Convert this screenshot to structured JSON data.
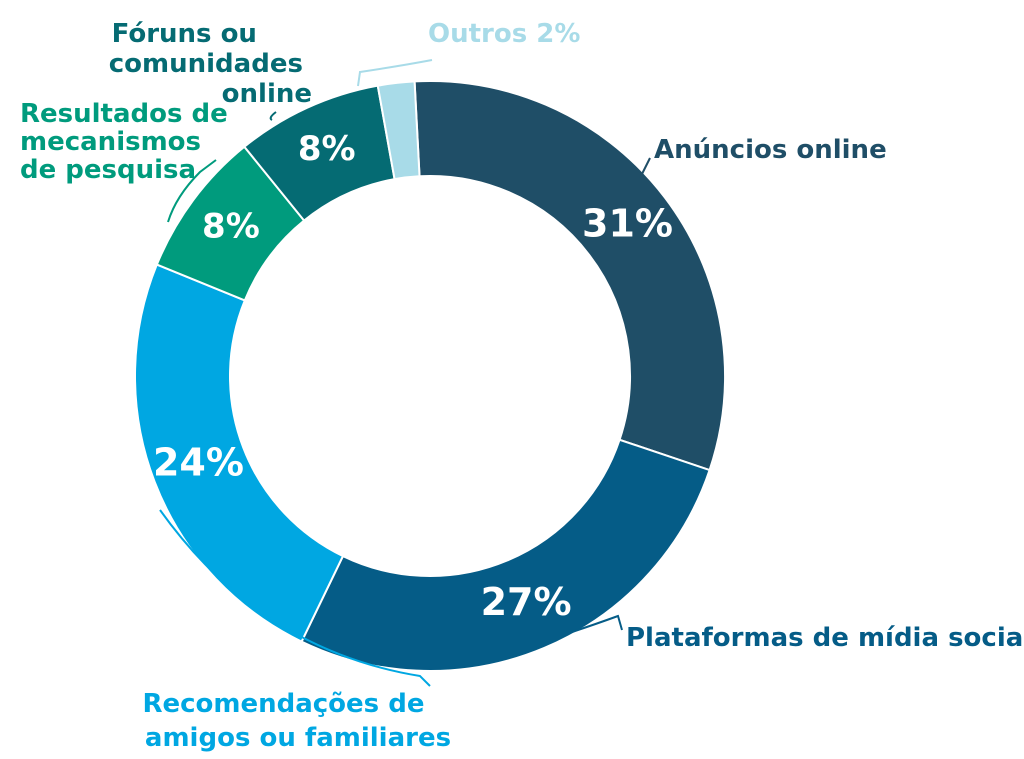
{
  "chart_data": {
    "type": "pie",
    "donut": true,
    "title": "",
    "start_angle_deg": -3,
    "slices": [
      {
        "label": "Anúncios online",
        "value": 31,
        "value_label": "31%",
        "color": "#1f4e67"
      },
      {
        "label": "Plataformas de mídia social",
        "value": 27,
        "value_label": "27%",
        "color": "#055c87"
      },
      {
        "label": "Recomendações de amigos ou familiares",
        "value": 24,
        "value_label": "24%",
        "color": "#00a7e2"
      },
      {
        "label": "Resultados de mecanismos de pesquisa",
        "value": 8,
        "value_label": "8%",
        "color": "#009b7d"
      },
      {
        "label": "Fóruns ou comunidades online",
        "value": 8,
        "value_label": "8%",
        "color": "#056b73"
      },
      {
        "label": "Outros",
        "value": 2,
        "value_label": "2%",
        "color": "#a8dbe8"
      }
    ]
  },
  "labels": {
    "anuncios": "Anúncios online",
    "plataformas": "Plataformas de mídia social",
    "recomendacoes": [
      "Recomendações de",
      "amigos ou familiares"
    ],
    "resultados": [
      "Resultados de",
      "mecanismos",
      "de pesquisa"
    ],
    "foruns": [
      "Fóruns ou",
      "comunidades",
      "online"
    ],
    "outros": "Outros 2%"
  }
}
